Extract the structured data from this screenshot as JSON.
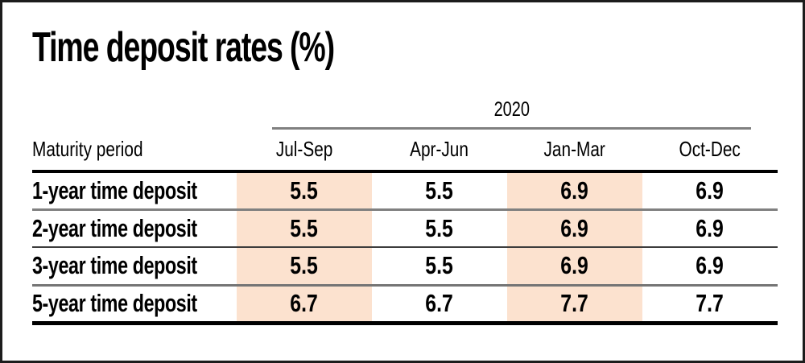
{
  "page": {
    "title": "Time deposit rates (%)"
  },
  "chart_data": {
    "type": "table",
    "title": "Time deposit rates (%)",
    "group_header": "2020",
    "row_label_header": "Maturity period",
    "columns": [
      "Jul-Sep",
      "Apr-Jun",
      "Jan-Mar",
      "Oct-Dec"
    ],
    "highlighted_columns": [
      "Jul-Sep",
      "Jan-Mar"
    ],
    "rows": [
      {
        "label": "1-year time deposit",
        "values": [
          "5.5",
          "5.5",
          "6.9",
          "6.9"
        ]
      },
      {
        "label": "2-year time deposit",
        "values": [
          "5.5",
          "5.5",
          "6.9",
          "6.9"
        ]
      },
      {
        "label": "3-year time deposit",
        "values": [
          "5.5",
          "5.5",
          "6.9",
          "6.9"
        ]
      },
      {
        "label": "5-year time deposit",
        "values": [
          "6.7",
          "6.7",
          "7.7",
          "7.7"
        ]
      }
    ],
    "colors": {
      "highlight": "#fce2cf",
      "rule_gray": "#808080",
      "rule_black": "#000000"
    }
  }
}
